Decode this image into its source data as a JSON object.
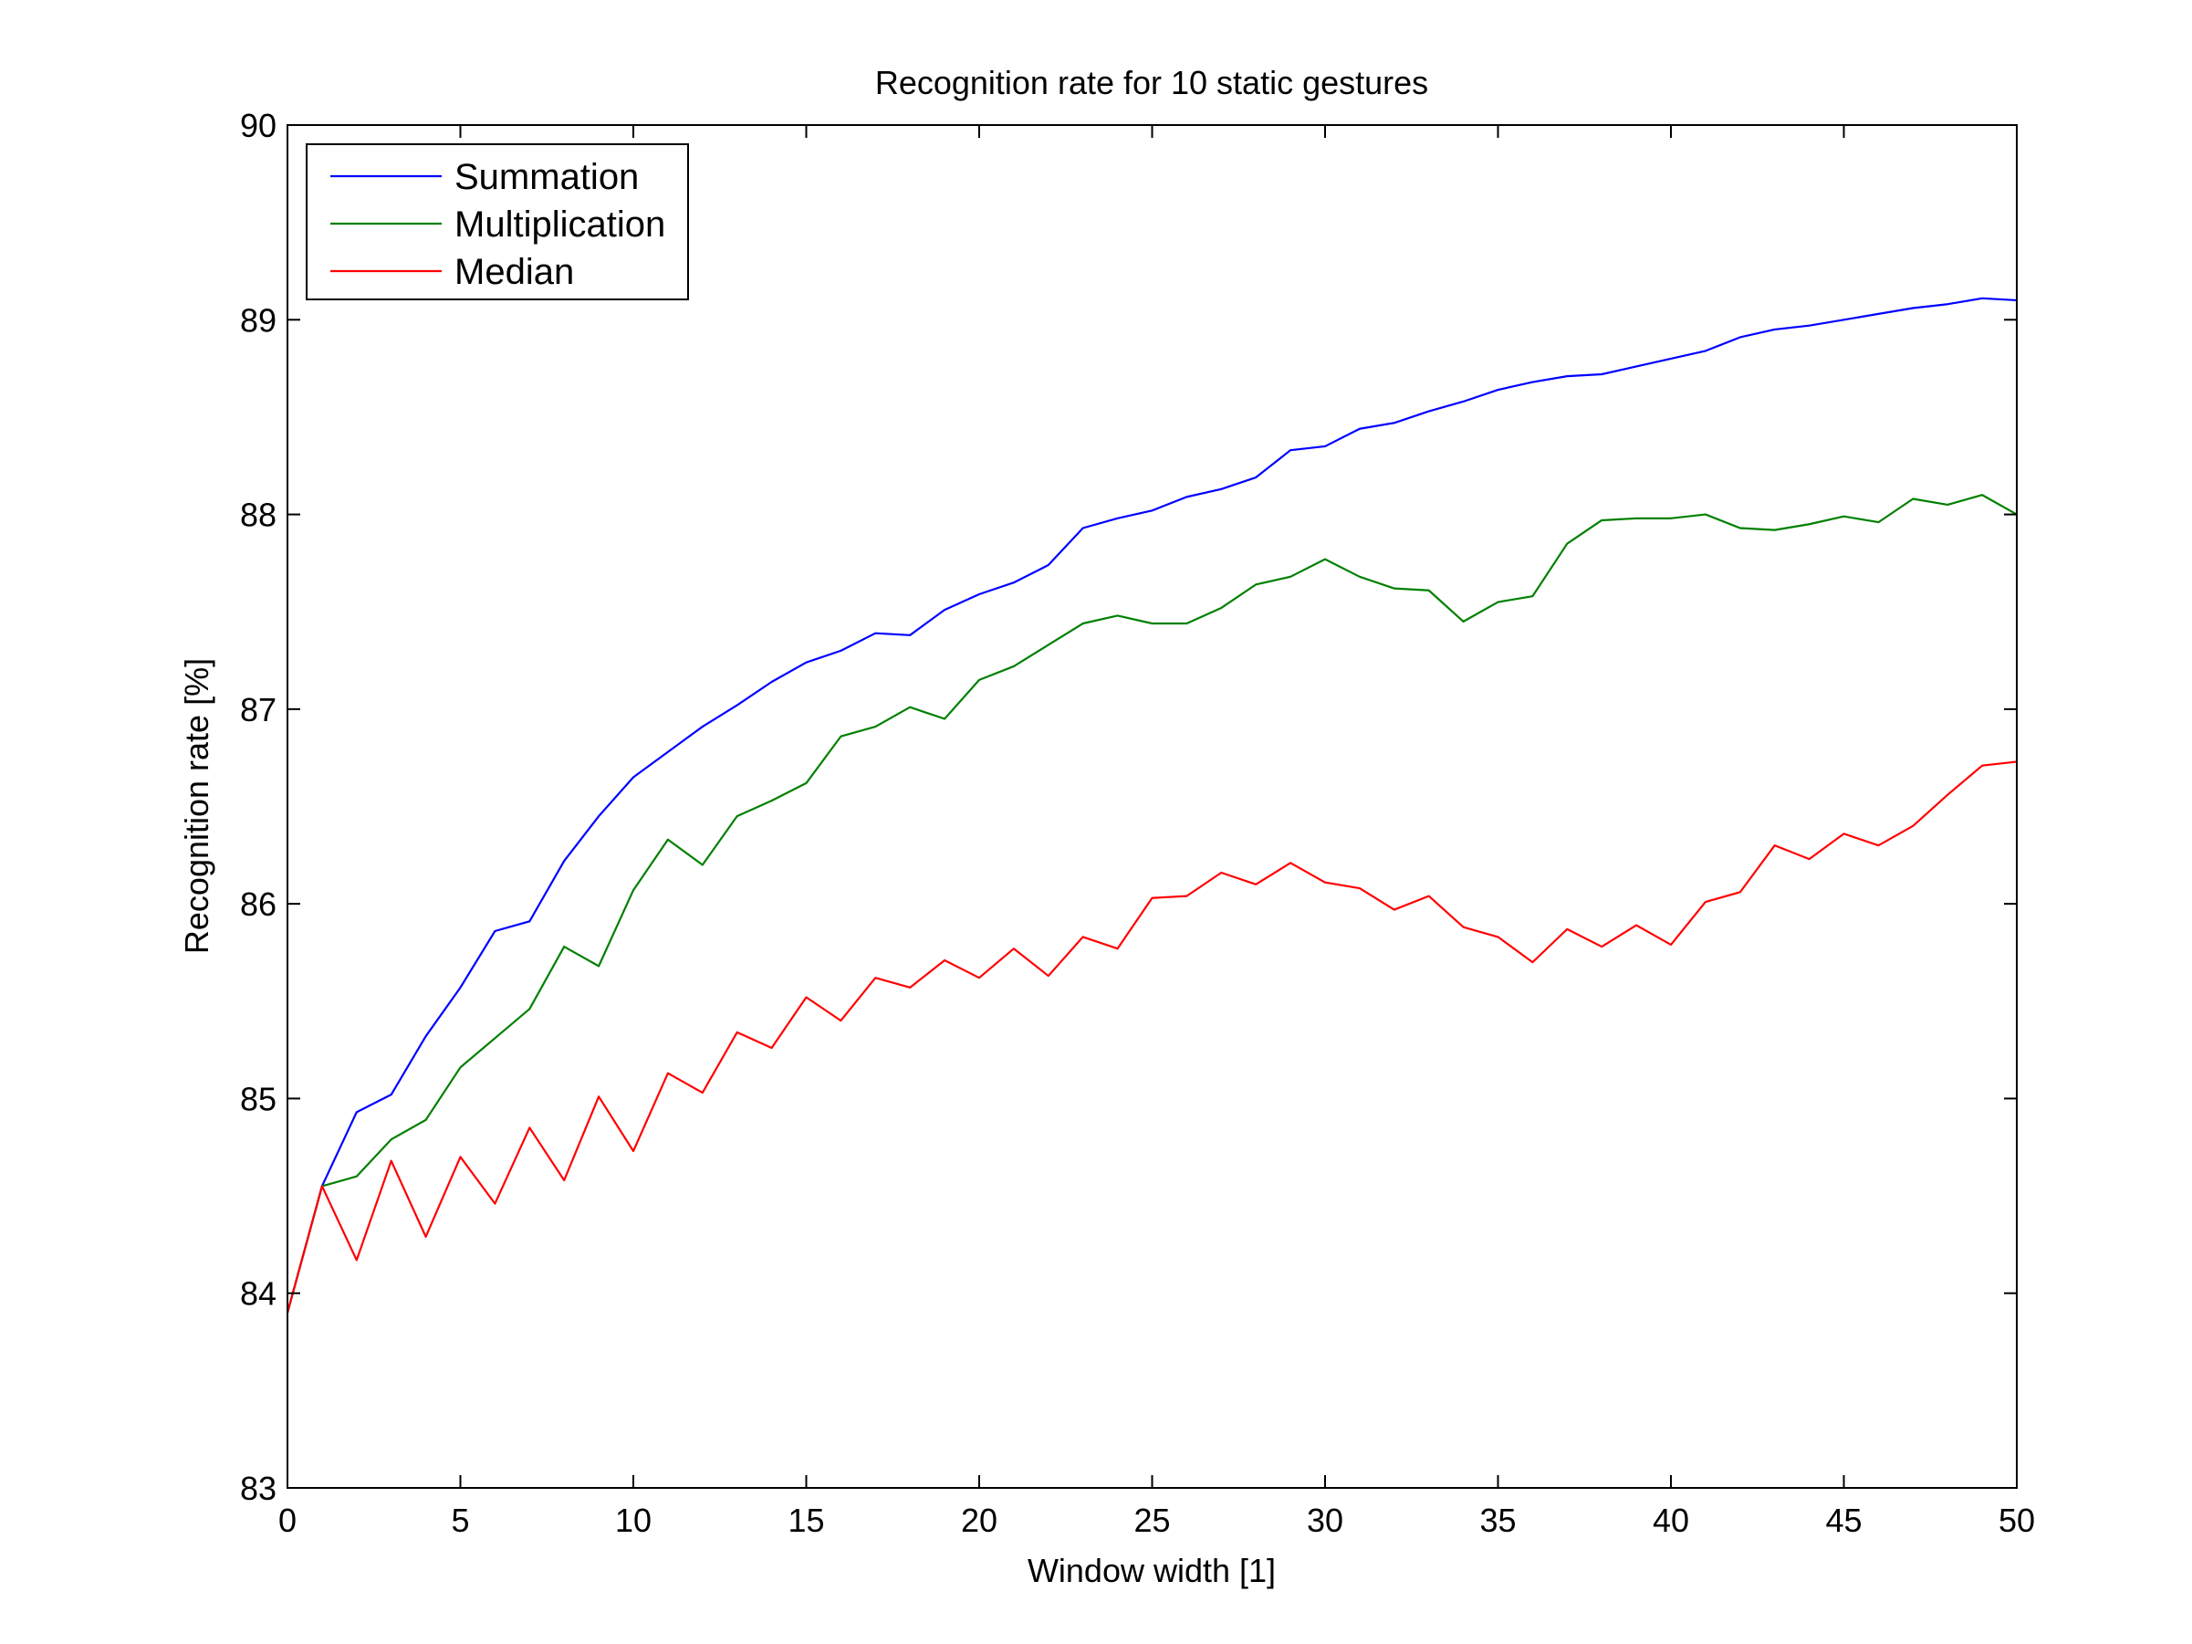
{
  "chart_data": {
    "type": "line",
    "title": "Recognition rate for 10 static gestures",
    "xlabel": "Window width [1]",
    "ylabel": "Recognition rate [%]",
    "xlim": [
      0,
      50
    ],
    "ylim": [
      83,
      90
    ],
    "xticks": [
      0,
      5,
      10,
      15,
      20,
      25,
      30,
      35,
      40,
      45,
      50
    ],
    "yticks": [
      83,
      84,
      85,
      86,
      87,
      88,
      89,
      90
    ],
    "grid": false,
    "legend_position": "top-left",
    "x": [
      0,
      1,
      2,
      3,
      4,
      5,
      6,
      7,
      8,
      9,
      10,
      11,
      12,
      13,
      14,
      15,
      16,
      17,
      18,
      19,
      20,
      21,
      22,
      23,
      24,
      25,
      26,
      27,
      28,
      29,
      30,
      31,
      32,
      33,
      34,
      35,
      36,
      37,
      38,
      39,
      40,
      41,
      42,
      43,
      44,
      45,
      46,
      47,
      48,
      49,
      50
    ],
    "series": [
      {
        "name": "Summation",
        "color": "#0000ff",
        "values": [
          83.9,
          84.55,
          84.93,
          85.02,
          85.32,
          85.57,
          85.86,
          85.91,
          86.22,
          86.45,
          86.65,
          86.78,
          86.91,
          87.02,
          87.14,
          87.24,
          87.3,
          87.39,
          87.38,
          87.51,
          87.59,
          87.65,
          87.74,
          87.93,
          87.98,
          88.02,
          88.09,
          88.13,
          88.19,
          88.33,
          88.35,
          88.44,
          88.47,
          88.53,
          88.58,
          88.64,
          88.68,
          88.71,
          88.72,
          88.76,
          88.8,
          88.84,
          88.91,
          88.95,
          88.97,
          89.0,
          89.03,
          89.06,
          89.08,
          89.11,
          89.1
        ]
      },
      {
        "name": "Multiplication",
        "color": "#008000",
        "values": [
          83.9,
          84.55,
          84.6,
          84.79,
          84.89,
          85.16,
          85.31,
          85.46,
          85.78,
          85.68,
          86.07,
          86.33,
          86.2,
          86.45,
          86.53,
          86.62,
          86.86,
          86.91,
          87.01,
          86.95,
          87.15,
          87.22,
          87.33,
          87.44,
          87.48,
          87.44,
          87.44,
          87.52,
          87.64,
          87.68,
          87.77,
          87.68,
          87.62,
          87.61,
          87.45,
          87.55,
          87.58,
          87.85,
          87.97,
          87.98,
          87.98,
          88.0,
          87.93,
          87.92,
          87.95,
          87.99,
          87.96,
          88.08,
          88.05,
          88.1,
          88.0
        ]
      },
      {
        "name": "Median",
        "color": "#ff0000",
        "values": [
          83.9,
          84.55,
          84.17,
          84.68,
          84.29,
          84.7,
          84.46,
          84.85,
          84.58,
          85.01,
          84.73,
          85.13,
          85.03,
          85.34,
          85.26,
          85.52,
          85.4,
          85.62,
          85.57,
          85.71,
          85.62,
          85.77,
          85.63,
          85.83,
          85.77,
          86.03,
          86.04,
          86.16,
          86.1,
          86.21,
          86.11,
          86.08,
          85.97,
          86.04,
          85.88,
          85.83,
          85.7,
          85.87,
          85.78,
          85.89,
          85.79,
          86.01,
          86.06,
          86.3,
          86.23,
          86.36,
          86.3,
          86.4,
          86.56,
          86.71,
          86.73
        ]
      }
    ]
  }
}
